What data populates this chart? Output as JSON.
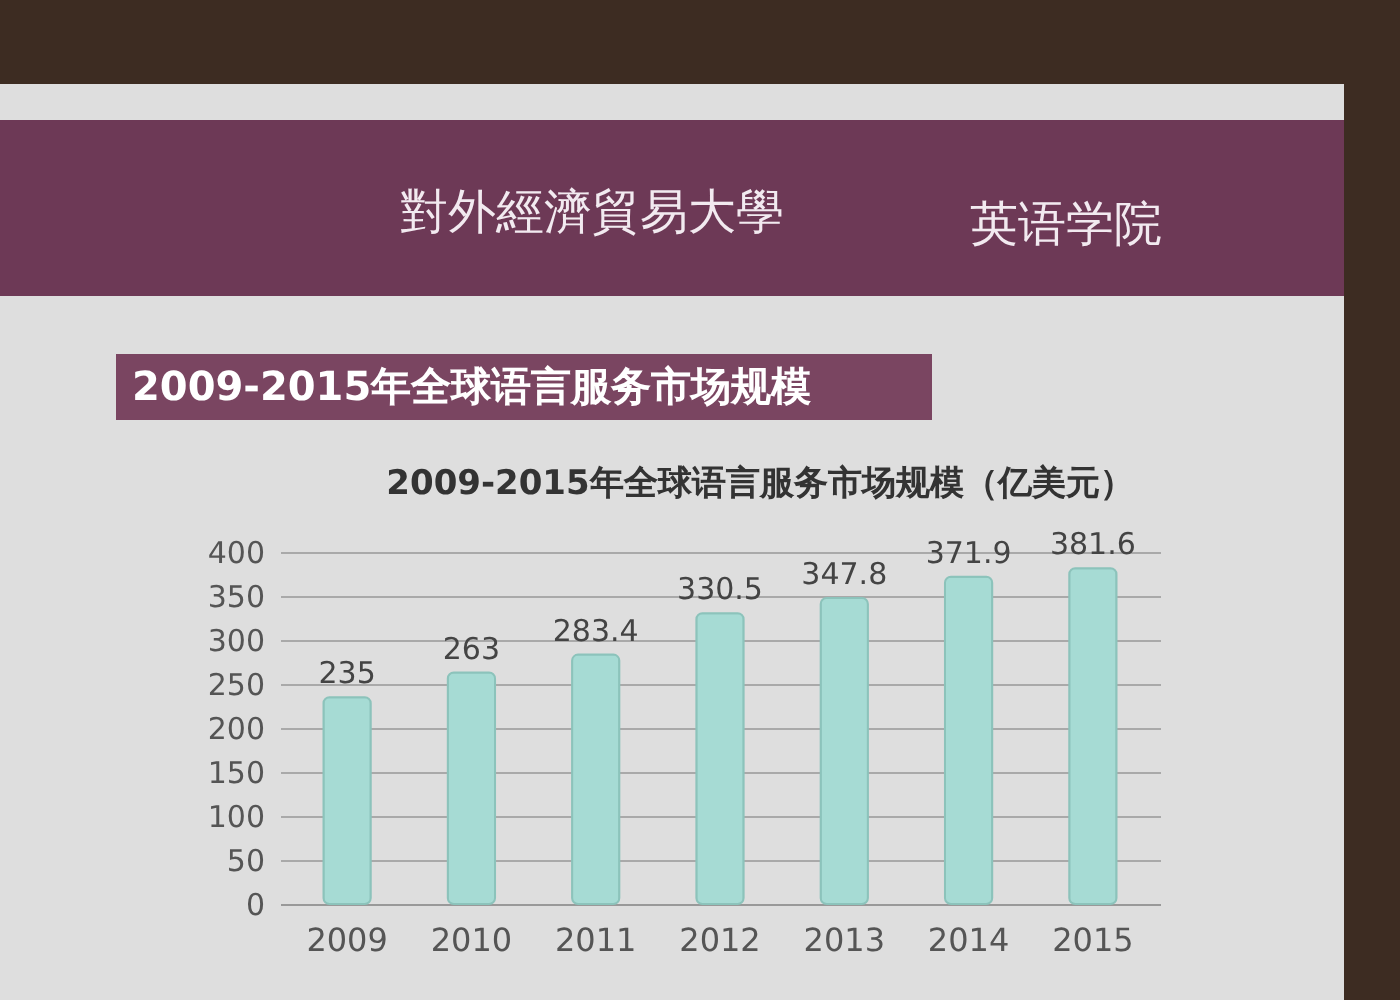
{
  "chart_data": {
    "type": "bar",
    "title": "2009-2015年全球语言服务市场规模",
    "subtitle": "2009-2015年全球语言服务市场规模（亿美元）",
    "annotations": [
      "對外經濟貿易大學",
      "英语学院"
    ],
    "categories": [
      "2009",
      "2010",
      "2011",
      "2012",
      "2013",
      "2014",
      "2015"
    ],
    "values": [
      235,
      263,
      283.4,
      330.5,
      347.8,
      371.9,
      381.6
    ],
    "color": "#a6dbd4",
    "ylim": [
      0,
      400
    ],
    "yticks": [
      0,
      50,
      100,
      150,
      200,
      250,
      300,
      350,
      400
    ],
    "grid": true,
    "data_labels": true
  }
}
